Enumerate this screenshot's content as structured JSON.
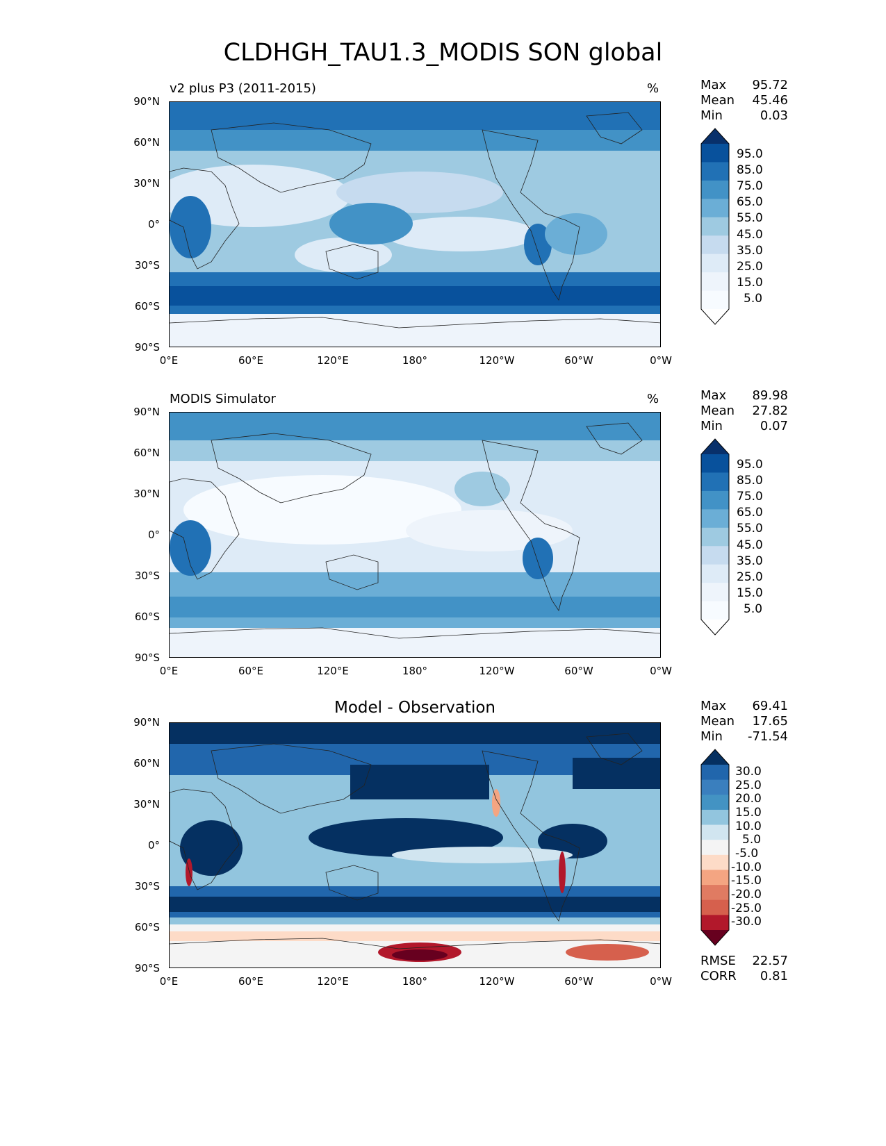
{
  "title": "CLDHGH_TAU1.3_MODIS SON global",
  "panels": [
    {
      "label": "v2 plus P3 (2011-2015)",
      "units": "%",
      "stats": {
        "max_label": "Max",
        "max": "95.72",
        "mean_label": "Mean",
        "mean": "45.46",
        "min_label": "Min",
        "min": "0.03"
      }
    },
    {
      "label": "MODIS Simulator",
      "units": "%",
      "stats": {
        "max_label": "Max",
        "max": "89.98",
        "mean_label": "Mean",
        "mean": "27.82",
        "min_label": "Min",
        "min": "0.07"
      }
    },
    {
      "label": "Model - Observation",
      "stats": {
        "max_label": "Max",
        "max": "69.41",
        "mean_label": "Mean",
        "mean": "17.65",
        "min_label": "Min",
        "min": "-71.54"
      },
      "metrics": {
        "rmse_label": "RMSE",
        "rmse": "22.57",
        "corr_label": "CORR",
        "corr": "0.81"
      }
    }
  ],
  "lat_ticks": [
    "90°N",
    "60°N",
    "30°N",
    "0°",
    "30°S",
    "60°S",
    "90°S"
  ],
  "lon_ticks": [
    "0°E",
    "60°E",
    "120°E",
    "180°",
    "120°W",
    "60°W",
    "0°W"
  ],
  "colorbar_abs": {
    "levels": [
      "95.0",
      "85.0",
      "75.0",
      "65.0",
      "55.0",
      "45.0",
      "35.0",
      "25.0",
      "15.0",
      "5.0"
    ],
    "colors": [
      "#08306b",
      "#08519c",
      "#2171b5",
      "#4292c6",
      "#6baed6",
      "#9ecae1",
      "#c6dbef",
      "#deebf7",
      "#eef4fb",
      "#f7fbff",
      "#ffffff"
    ]
  },
  "colorbar_diff": {
    "levels": [
      "30.0",
      "25.0",
      "20.0",
      "15.0",
      "10.0",
      "5.0",
      "-5.0",
      "-10.0",
      "-15.0",
      "-20.0",
      "-25.0",
      "-30.0"
    ],
    "colors": [
      "#053061",
      "#2166ac",
      "#3a7fbe",
      "#4393c3",
      "#92c5de",
      "#d1e5f0",
      "#f4f4f4",
      "#fddbc7",
      "#f4a582",
      "#e07b62",
      "#d6604d",
      "#b2182b",
      "#67001f"
    ]
  }
}
